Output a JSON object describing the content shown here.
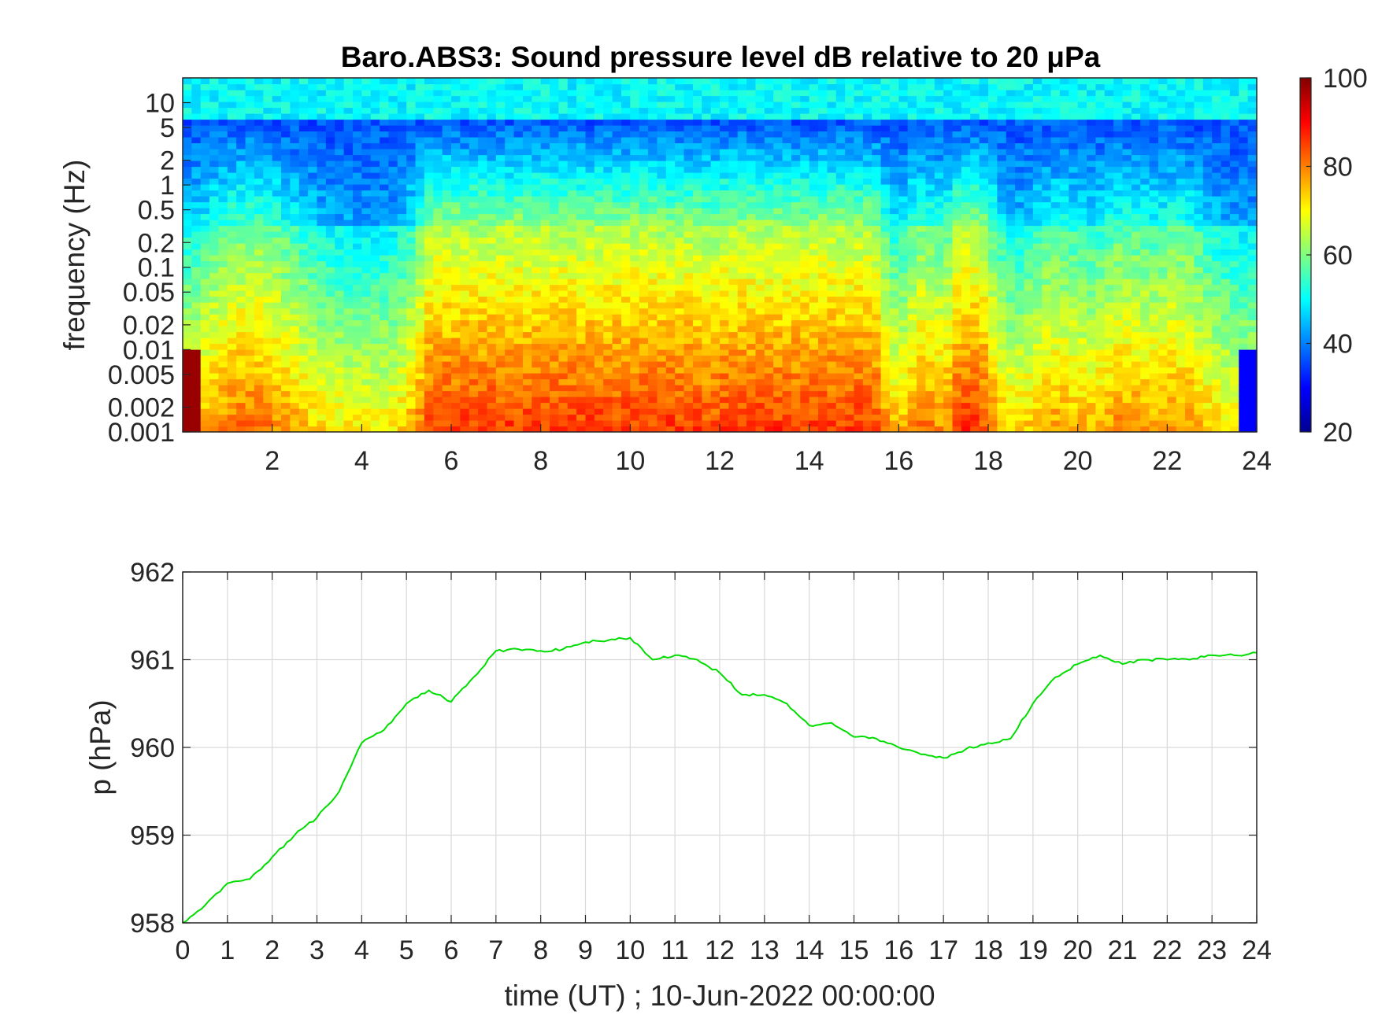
{
  "chart_data": [
    {
      "type": "heatmap",
      "title": "Baro.ABS3: Sound pressure level dB relative to 20 μPa",
      "ylabel": "frequency (Hz)",
      "xlabel": "",
      "x_axis": {
        "range": [
          0,
          24
        ],
        "ticks": [
          2,
          4,
          6,
          8,
          10,
          12,
          14,
          16,
          18,
          20,
          22,
          24
        ]
      },
      "y_axis": {
        "scale": "log",
        "range": [
          0.001,
          20
        ],
        "ticks": [
          0.001,
          0.002,
          0.005,
          0.01,
          0.02,
          0.05,
          0.1,
          0.2,
          0.5,
          1,
          2,
          5,
          10
        ],
        "tick_labels": [
          "0.001",
          "0.002",
          "0.005",
          "0.01",
          "0.02",
          "0.05",
          "0.1",
          "0.2",
          "0.5",
          "1",
          "2",
          "5",
          "10"
        ]
      },
      "colorbar": {
        "colormap": "jet",
        "range": [
          20,
          100
        ],
        "ticks": [
          20,
          40,
          60,
          80,
          100
        ]
      },
      "grid": false
    },
    {
      "type": "line",
      "title": "",
      "xlabel": "time (UT) ; 10-Jun-2022 00:00:00",
      "ylabel": "p (hPa)",
      "xlim": [
        0,
        24
      ],
      "ylim": [
        958,
        962
      ],
      "x_ticks": [
        0,
        1,
        2,
        3,
        4,
        5,
        6,
        7,
        8,
        9,
        10,
        11,
        12,
        13,
        14,
        15,
        16,
        17,
        18,
        19,
        20,
        21,
        22,
        23,
        24
      ],
      "y_ticks": [
        958,
        959,
        960,
        961,
        962
      ],
      "grid": true,
      "series": [
        {
          "color": "#00dd00",
          "x": [
            0,
            0.5,
            1,
            1.5,
            2,
            2.5,
            3,
            3.5,
            4,
            4.5,
            5,
            5.5,
            6,
            6.5,
            7,
            7.5,
            8,
            8.5,
            9,
            9.5,
            10,
            10.5,
            11,
            11.5,
            12,
            12.5,
            13,
            13.5,
            14,
            14.5,
            15,
            15.5,
            16,
            16.5,
            17,
            17.5,
            18,
            18.5,
            19,
            19.5,
            20,
            20.5,
            21,
            21.5,
            22,
            22.5,
            23,
            23.5,
            24
          ],
          "y": [
            958.0,
            958.2,
            958.45,
            958.5,
            958.75,
            959.0,
            959.2,
            959.5,
            960.05,
            960.2,
            960.5,
            960.65,
            960.52,
            960.8,
            961.1,
            961.12,
            961.1,
            961.12,
            961.2,
            961.22,
            961.25,
            961.0,
            961.05,
            961.0,
            960.85,
            960.6,
            960.6,
            960.5,
            960.25,
            960.28,
            960.12,
            960.1,
            960.0,
            959.92,
            959.88,
            959.98,
            960.05,
            960.1,
            960.5,
            960.8,
            960.95,
            961.05,
            960.95,
            961.0,
            961.0,
            961.0,
            961.05,
            961.05,
            961.08
          ]
        }
      ]
    }
  ]
}
